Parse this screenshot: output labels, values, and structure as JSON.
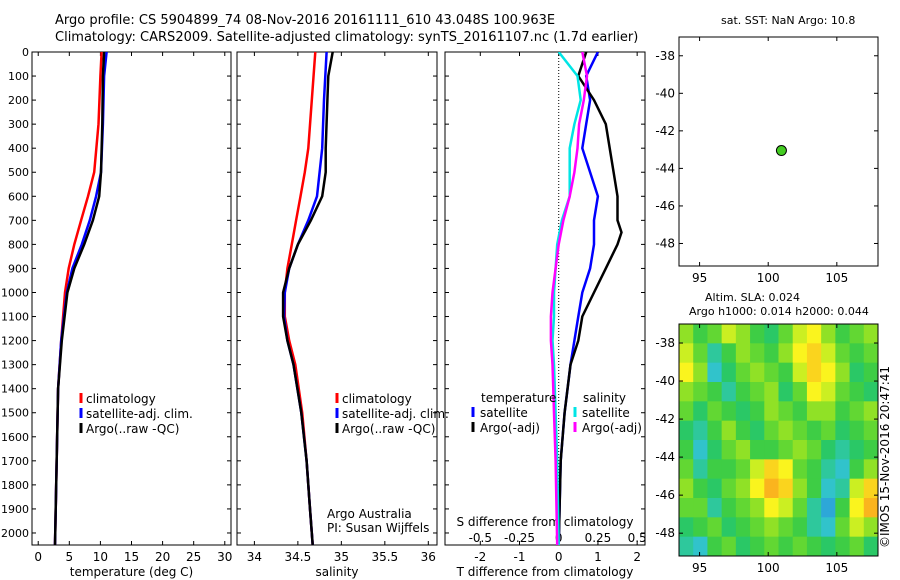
{
  "header": {
    "line1": "Argo profile: CS 5904899_74 08-Nov-2016 20161111_610 43.048S 100.963E",
    "line2": "Climatology: CARS2009. Satellite-adjusted climatology: synTS_20161107.nc (1.7d earlier)"
  },
  "colors": {
    "climatology": "#ff0000",
    "satellite": "#0000ff",
    "argo": "#000000",
    "sat_salinity": "#00e5e5",
    "argo_salinity": "#ff00ff",
    "float_marker": "#44cc22"
  },
  "map_texts": {
    "sst_title": "sat. SST: NaN Argo: 10.8",
    "sla_title": "Altim. SLA: 0.024",
    "height_title": "Argo h1000: 0.014 h2000: 0.044",
    "credit": "©IMOS 15-Nov-2016 20:47:41"
  },
  "chart_data": [
    {
      "type": "line",
      "xlabel": "temperature (deg C)",
      "ylabel": "",
      "xlim": [
        -1,
        31
      ],
      "ylim": [
        2050,
        0
      ],
      "xticks": [
        0,
        5,
        10,
        15,
        20,
        25,
        30
      ],
      "yticks": [
        0,
        100,
        200,
        300,
        400,
        500,
        600,
        700,
        800,
        900,
        1000,
        1100,
        1200,
        1300,
        1400,
        1500,
        1600,
        1700,
        1800,
        1900,
        2000
      ],
      "legend": [
        "climatology",
        "satellite-adj. clim.",
        "Argo(..raw -QC)"
      ],
      "series": [
        {
          "name": "climatology",
          "color": "#ff0000",
          "y": [
            0,
            100,
            300,
            500,
            600,
            700,
            800,
            900,
            1000,
            1200,
            1400,
            2050
          ],
          "x": [
            10.2,
            10.0,
            9.7,
            9.0,
            8.0,
            6.9,
            5.8,
            4.9,
            4.3,
            3.7,
            3.2,
            2.7
          ]
        },
        {
          "name": "satellite-adj. clim.",
          "color": "#0000ff",
          "y": [
            0,
            100,
            300,
            500,
            600,
            700,
            800,
            900,
            1000,
            1200,
            1400,
            2050
          ],
          "x": [
            11.0,
            10.6,
            10.4,
            10.1,
            9.3,
            8.3,
            7.0,
            5.5,
            4.6,
            3.7,
            3.2,
            2.7
          ]
        },
        {
          "name": "Argo(..raw -QC)",
          "color": "#000000",
          "y": [
            0,
            100,
            300,
            500,
            600,
            700,
            800,
            900,
            1000,
            1200,
            1400,
            2050
          ],
          "x": [
            10.6,
            10.4,
            10.3,
            10.1,
            9.8,
            8.8,
            7.4,
            5.8,
            4.7,
            3.8,
            3.2,
            2.7
          ]
        }
      ]
    },
    {
      "type": "line",
      "xlabel": "salinity",
      "xlim": [
        33.8,
        36.1
      ],
      "ylim": [
        2050,
        0
      ],
      "xticks": [
        34,
        34.5,
        35,
        35.5,
        36
      ],
      "xticklabels": [
        "34",
        "34.5",
        "35",
        "35.5",
        "36"
      ],
      "legend": [
        "climatology",
        "satellite-adj. clim.",
        "Argo(..raw -QC)"
      ],
      "annotation": [
        "Argo Australia",
        "PI: Susan Wijffels"
      ],
      "series": [
        {
          "name": "climatology",
          "color": "#ff0000",
          "y": [
            0,
            200,
            400,
            500,
            600,
            700,
            800,
            900,
            1000,
            1100,
            1200,
            1300,
            1500,
            1700,
            1900,
            2050
          ],
          "x": [
            34.7,
            34.66,
            34.62,
            34.58,
            34.53,
            34.48,
            34.43,
            34.38,
            34.35,
            34.35,
            34.4,
            34.47,
            34.55,
            34.6,
            34.64,
            34.67
          ]
        },
        {
          "name": "satellite-adj. clim.",
          "color": "#0000ff",
          "y": [
            0,
            200,
            400,
            500,
            600,
            700,
            800,
            900,
            1000,
            1100,
            1200,
            1300,
            1500,
            1700,
            1900,
            2050
          ],
          "x": [
            34.83,
            34.8,
            34.78,
            34.75,
            34.72,
            34.62,
            34.5,
            34.4,
            34.35,
            34.34,
            34.38,
            34.45,
            34.54,
            34.6,
            34.64,
            34.67
          ]
        },
        {
          "name": "Argo(..raw -QC)",
          "color": "#000000",
          "y": [
            0,
            100,
            200,
            400,
            500,
            600,
            700,
            800,
            900,
            1000,
            1100,
            1200,
            1300,
            1500,
            1700,
            1900,
            2050
          ],
          "x": [
            34.9,
            34.85,
            34.84,
            34.82,
            34.82,
            34.78,
            34.65,
            34.5,
            34.4,
            34.33,
            34.33,
            34.38,
            34.45,
            34.54,
            34.6,
            34.64,
            34.67
          ]
        }
      ]
    },
    {
      "type": "line",
      "xlabel": "T difference from climatology",
      "xlabel2": "S difference from climatology",
      "xlim": [
        -2.9,
        2.2
      ],
      "ylim": [
        2050,
        0
      ],
      "xticks": [
        -2,
        -1,
        0,
        1,
        2
      ],
      "xticks2": [
        "-0.5",
        "-0.25",
        "0",
        "0.25",
        "0.5"
      ],
      "legend_titles": [
        "temperature",
        "salinity"
      ],
      "legend": [
        "satellite",
        "Argo(-adj)",
        "satellite",
        "Argo(-adj)"
      ],
      "series": [
        {
          "name": "satellite",
          "group": "temperature",
          "color": "#0000ff",
          "y": [
            0,
            100,
            200,
            300,
            400,
            500,
            600,
            700,
            800,
            900,
            1000,
            1100,
            1200,
            1300,
            1500,
            1700,
            2050
          ],
          "x": [
            1.0,
            0.7,
            0.8,
            0.7,
            0.6,
            0.8,
            1.0,
            0.9,
            0.9,
            0.8,
            0.6,
            0.5,
            0.4,
            0.3,
            0.15,
            0.05,
            0.0
          ]
        },
        {
          "name": "Argo(-adj)",
          "group": "temperature",
          "color": "#000000",
          "y": [
            0,
            100,
            200,
            300,
            400,
            500,
            600,
            700,
            750,
            800,
            900,
            1000,
            1100,
            1200,
            1300,
            1500,
            1700,
            2050
          ],
          "x": [
            0.7,
            0.5,
            0.9,
            1.2,
            1.3,
            1.4,
            1.5,
            1.5,
            1.6,
            1.5,
            1.2,
            0.9,
            0.6,
            0.5,
            0.3,
            0.15,
            0.05,
            0.0
          ]
        },
        {
          "name": "satellite",
          "group": "salinity",
          "color": "#00e5e5",
          "y": [
            0,
            100,
            200,
            300,
            400,
            500,
            600,
            700,
            800,
            900,
            1000,
            1100,
            1200,
            1300,
            1500,
            1700,
            2050
          ],
          "x": [
            0.0,
            0.12,
            0.14,
            0.1,
            0.07,
            0.07,
            0.07,
            0.02,
            -0.01,
            -0.02,
            -0.03,
            -0.03,
            -0.04,
            -0.03,
            -0.02,
            -0.01,
            0.0
          ]
        },
        {
          "name": "Argo(-adj)",
          "group": "salinity",
          "color": "#ff00ff",
          "y": [
            0,
            100,
            200,
            300,
            400,
            500,
            600,
            700,
            800,
            900,
            1000,
            1100,
            1200,
            1300,
            1500,
            1700,
            2050
          ],
          "x": [
            0.15,
            0.18,
            0.16,
            0.13,
            0.12,
            0.1,
            0.07,
            0.03,
            0.0,
            -0.02,
            -0.04,
            -0.05,
            -0.05,
            -0.04,
            -0.03,
            -0.02,
            -0.01
          ]
        }
      ]
    },
    {
      "type": "scatter",
      "xlim": [
        93.5,
        108
      ],
      "ylim": [
        -49.2,
        -37
      ],
      "xticks": [
        95,
        100,
        105
      ],
      "yticks": [
        -38,
        -40,
        -42,
        -44,
        -46,
        -48
      ],
      "points": [
        {
          "x": 100.963,
          "y": -43.048
        }
      ]
    },
    {
      "type": "heatmap",
      "xlim": [
        93.5,
        108
      ],
      "ylim": [
        -49.2,
        -37
      ],
      "xticks": [
        95,
        100,
        105
      ],
      "yticks": [
        -38,
        -40,
        -42,
        -44,
        -46,
        -48
      ],
      "values": [
        [
          0.02,
          0.0,
          0.01,
          0.03,
          0.02,
          0.0,
          -0.01,
          0.01,
          0.03,
          0.04,
          0.02,
          0.0,
          0.01,
          0.02
        ],
        [
          0.03,
          0.01,
          -0.02,
          0.0,
          0.02,
          0.01,
          0.0,
          0.02,
          0.04,
          0.05,
          0.03,
          0.01,
          0.0,
          0.01
        ],
        [
          0.04,
          0.02,
          -0.03,
          -0.01,
          0.01,
          0.02,
          0.01,
          0.0,
          0.03,
          0.05,
          0.04,
          0.02,
          -0.01,
          0.0
        ],
        [
          0.02,
          0.01,
          0.0,
          -0.02,
          0.0,
          0.01,
          0.02,
          -0.01,
          0.01,
          0.04,
          0.03,
          0.01,
          0.0,
          -0.01
        ],
        [
          0.01,
          -0.01,
          0.01,
          0.0,
          -0.01,
          0.0,
          0.02,
          0.01,
          0.0,
          0.02,
          0.02,
          0.0,
          0.01,
          0.02
        ],
        [
          -0.01,
          -0.02,
          0.0,
          0.02,
          0.0,
          -0.01,
          0.01,
          0.02,
          0.01,
          0.0,
          0.01,
          -0.01,
          0.0,
          0.01
        ],
        [
          0.0,
          -0.03,
          -0.01,
          0.01,
          0.02,
          0.0,
          0.0,
          0.01,
          0.02,
          0.01,
          -0.01,
          -0.02,
          -0.01,
          0.0
        ],
        [
          0.01,
          -0.02,
          0.0,
          0.0,
          0.01,
          0.03,
          0.05,
          0.04,
          0.01,
          0.0,
          -0.02,
          -0.03,
          0.0,
          0.02
        ],
        [
          0.02,
          0.0,
          -0.01,
          0.01,
          0.02,
          0.04,
          0.06,
          0.05,
          0.02,
          0.0,
          -0.03,
          -0.02,
          0.03,
          0.05
        ],
        [
          0.01,
          0.01,
          -0.02,
          0.0,
          0.01,
          0.02,
          0.04,
          0.03,
          0.01,
          -0.02,
          -0.04,
          0.0,
          0.04,
          0.06
        ],
        [
          -0.01,
          0.0,
          0.01,
          -0.01,
          0.0,
          0.01,
          0.02,
          0.01,
          0.0,
          -0.02,
          -0.03,
          0.01,
          0.03,
          0.02
        ],
        [
          -0.02,
          -0.03,
          0.0,
          0.01,
          -0.01,
          0.0,
          0.01,
          0.0,
          0.01,
          0.0,
          -0.01,
          0.0,
          0.01,
          -0.01
        ]
      ]
    }
  ]
}
